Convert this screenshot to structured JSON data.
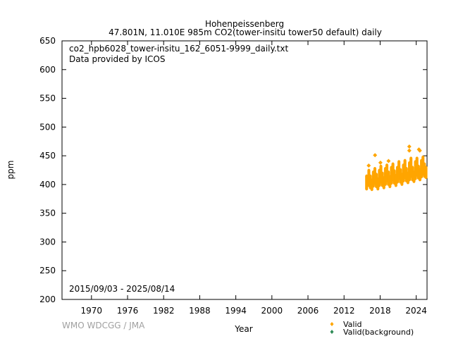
{
  "chart_data": {
    "type": "scatter",
    "title": "Hohenpeissenberg",
    "subtitle": "47.801N, 11.010E 985m    CO2(tower-insitu tower50 default) daily",
    "xlabel": "Year",
    "ylabel": "ppm",
    "xlim": [
      1965.1,
      2025.8
    ],
    "ylim": [
      200,
      650
    ],
    "xticks": [
      1970,
      1976,
      1982,
      1988,
      1994,
      2000,
      2006,
      2012,
      2018,
      2024
    ],
    "yticks": [
      200,
      250,
      300,
      350,
      400,
      450,
      500,
      550,
      600,
      650
    ],
    "grid": false,
    "annotations": {
      "filename": "co2_hpb6028_tower-insitu_162_6051-9999_daily.txt",
      "provider": "Data provided by ICOS",
      "period": "2015/09/03 - 2025/08/14",
      "credit": "WMO WDCGG / JMA"
    },
    "legend": {
      "placement": "bottom-right",
      "entries": [
        {
          "label": "Valid",
          "color": "#ffa500"
        },
        {
          "label": "Valid(background)",
          "color": "#2e8b57"
        }
      ]
    },
    "series": [
      {
        "name": "Valid",
        "color": "#ffa500",
        "quarterly_ranges": [
          [
            2015.75,
            392,
            415
          ],
          [
            2016.125,
            398,
            425
          ],
          [
            2016.375,
            394,
            415
          ],
          [
            2016.625,
            391,
            408
          ],
          [
            2016.875,
            397,
            422
          ],
          [
            2017.125,
            402,
            428
          ],
          [
            2017.375,
            396,
            418
          ],
          [
            2017.625,
            392,
            410
          ],
          [
            2017.875,
            398,
            425
          ],
          [
            2018.125,
            404,
            432
          ],
          [
            2018.375,
            398,
            420
          ],
          [
            2018.625,
            394,
            412
          ],
          [
            2018.875,
            400,
            428
          ],
          [
            2019.125,
            406,
            434
          ],
          [
            2019.375,
            400,
            422
          ],
          [
            2019.625,
            396,
            414
          ],
          [
            2019.875,
            402,
            430
          ],
          [
            2020.125,
            408,
            436
          ],
          [
            2020.375,
            402,
            424
          ],
          [
            2020.625,
            398,
            416
          ],
          [
            2020.875,
            404,
            430
          ],
          [
            2021.125,
            410,
            440
          ],
          [
            2021.375,
            404,
            426
          ],
          [
            2021.625,
            400,
            418
          ],
          [
            2021.875,
            406,
            434
          ],
          [
            2022.125,
            412,
            442
          ],
          [
            2022.375,
            406,
            428
          ],
          [
            2022.625,
            403,
            420
          ],
          [
            2022.875,
            408,
            438
          ],
          [
            2023.125,
            414,
            446
          ],
          [
            2023.375,
            408,
            430
          ],
          [
            2023.625,
            405,
            422
          ],
          [
            2023.875,
            410,
            440
          ],
          [
            2024.125,
            416,
            446
          ],
          [
            2024.375,
            411,
            432
          ],
          [
            2024.625,
            408,
            426
          ],
          [
            2024.875,
            413,
            442
          ],
          [
            2025.125,
            418,
            448
          ],
          [
            2025.375,
            414,
            436
          ],
          [
            2025.625,
            412,
            430
          ]
        ],
        "outliers": [
          [
            2016.1,
            433
          ],
          [
            2017.15,
            451
          ],
          [
            2018.05,
            438
          ],
          [
            2019.4,
            441
          ],
          [
            2022.85,
            466
          ],
          [
            2022.85,
            459
          ],
          [
            2024.45,
            461
          ],
          [
            2024.6,
            459
          ]
        ]
      },
      {
        "name": "Valid(background)",
        "color": "#2e8b57",
        "quarterly_ranges": [],
        "outliers": []
      }
    ]
  }
}
